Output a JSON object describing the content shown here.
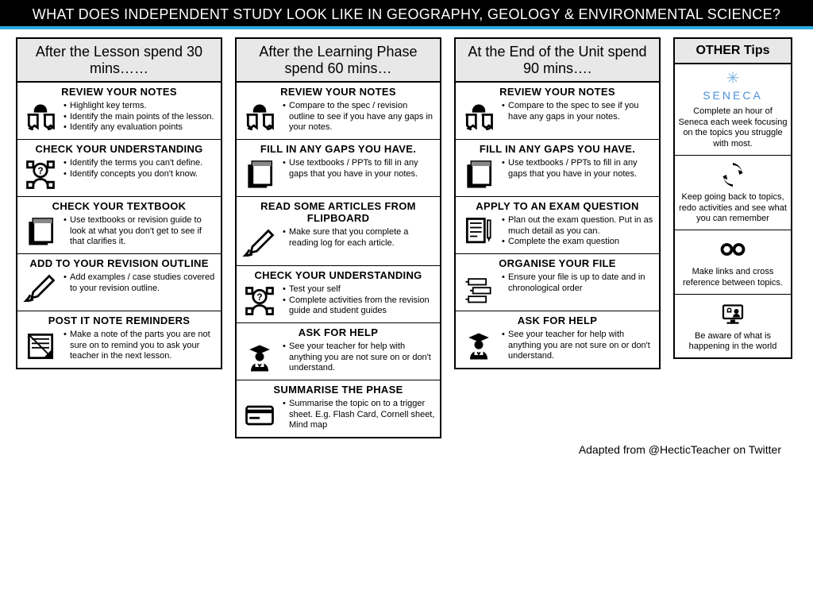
{
  "banner": "WHAT DOES INDEPENDENT STUDY LOOK LIKE IN GEOGRAPHY, GEOLOGY & ENVIRONMENTAL SCIENCE?",
  "accent_color": "#29abe2",
  "credit": "Adapted from @HecticTeacher on Twitter",
  "columns": [
    {
      "header": "After the Lesson spend 30 mins……",
      "sections": [
        {
          "title": "REVIEW YOUR NOTES",
          "icon": "reader",
          "bullets": [
            "Highlight key terms.",
            "Identify the main points of the lesson.",
            "Identify any evaluation points"
          ]
        },
        {
          "title": "CHECK YOUR UNDERSTANDING",
          "icon": "question-head",
          "bullets": [
            "Identify the terms you can't define.",
            "Identify concepts you don't know."
          ]
        },
        {
          "title": "CHECK YOUR TEXTBOOK",
          "icon": "textbook",
          "bullets": [
            "Use textbooks or revision guide to look at what you don't get to see if that clarifies it."
          ]
        },
        {
          "title": "ADD TO YOUR REVISION OUTLINE",
          "icon": "writing",
          "bullets": [
            "Add examples / case studies covered to your revision outline."
          ]
        },
        {
          "title": "POST IT NOTE REMINDERS",
          "icon": "postit",
          "bullets": [
            "Make a note of the parts you are not sure on to remind you to ask your teacher in the next lesson."
          ]
        }
      ]
    },
    {
      "header": "After the Learning Phase  spend 60 mins…",
      "sections": [
        {
          "title": "REVIEW YOUR NOTES",
          "icon": "reader",
          "bullets": [
            "Compare to the spec / revision outline to see if you have any gaps in your notes."
          ]
        },
        {
          "title": "FILL IN ANY GAPS YOU HAVE.",
          "icon": "textbook",
          "bullets": [
            "Use textbooks / PPTs to fill in any gaps that you have in your notes."
          ]
        },
        {
          "title": "READ SOME ARTICLES FROM FLIPBOARD",
          "icon": "writing",
          "bullets": [
            "Make sure that you complete a reading log for each article."
          ]
        },
        {
          "title": "CHECK YOUR UNDERSTANDING",
          "icon": "question-head",
          "bullets": [
            "Test your self",
            "Complete activities from the revision guide and student guides"
          ]
        },
        {
          "title": "ASK FOR HELP",
          "icon": "graduate",
          "bullets": [
            "See your teacher for help with anything you are not sure on or don't understand."
          ]
        },
        {
          "title": "SUMMARISE THE PHASE",
          "icon": "card",
          "bullets": [
            "Summarise the topic on to a trigger sheet. E.g. Flash Card, Cornell sheet, Mind map"
          ]
        }
      ]
    },
    {
      "header": "At the End of the Unit spend 90 mins….",
      "sections": [
        {
          "title": "REVIEW YOUR NOTES",
          "icon": "reader",
          "bullets": [
            "Compare to the spec to see if you have any gaps in your notes."
          ]
        },
        {
          "title": "FILL IN ANY GAPS YOU HAVE.",
          "icon": "textbook",
          "bullets": [
            "Use textbooks / PPTs to fill in any gaps that you have in your notes."
          ]
        },
        {
          "title": "APPLY TO AN EXAM QUESTION",
          "icon": "exam",
          "bullets": [
            "Plan out the exam question. Put in as much detail as you can.",
            "Complete the exam question"
          ]
        },
        {
          "title": "ORGANISE YOUR FILE",
          "icon": "file",
          "bullets": [
            "Ensure your file is up to date and in chronological order"
          ]
        },
        {
          "title": "ASK FOR HELP",
          "icon": "graduate",
          "bullets": [
            "See your teacher for help with anything you are not sure on or don't understand."
          ]
        }
      ]
    }
  ],
  "tips": {
    "header": "OTHER Tips",
    "items": [
      {
        "icon": "seneca",
        "text": "Complete an hour of Seneca each week focusing on the topics you struggle with most."
      },
      {
        "icon": "refresh",
        "text": "Keep going back to topics, redo activities and see what you can remember"
      },
      {
        "icon": "link",
        "text": "Make links and cross reference between topics."
      },
      {
        "icon": "monitor",
        "text": "Be aware of what is happening in the world"
      }
    ]
  }
}
